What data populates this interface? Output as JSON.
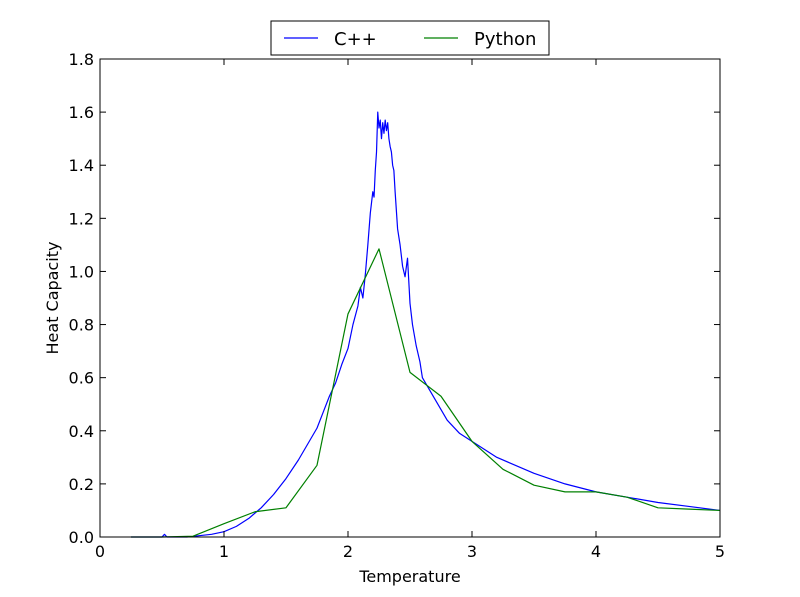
{
  "chart_data": {
    "type": "line",
    "title": "",
    "xlabel": "Temperature",
    "ylabel": "Heat Capacity",
    "xlim": [
      0,
      5
    ],
    "ylim": [
      0,
      1.8
    ],
    "xticks": [
      0,
      1,
      2,
      3,
      4,
      5
    ],
    "xtick_labels": [
      "0",
      "1",
      "2",
      "3",
      "4",
      "5"
    ],
    "yticks": [
      0.0,
      0.2,
      0.4,
      0.6,
      0.8,
      1.0,
      1.2,
      1.4,
      1.6,
      1.8
    ],
    "ytick_labels": [
      "0.0",
      "0.2",
      "0.4",
      "0.6",
      "0.8",
      "1.0",
      "1.2",
      "1.4",
      "1.6",
      "1.8"
    ],
    "grid": false,
    "legend_position": "top-center",
    "series": [
      {
        "name": "C++",
        "color": "#0000ff",
        "x": [
          0.25,
          0.5,
          0.52,
          0.54,
          0.6,
          0.7,
          0.75,
          0.8,
          0.9,
          1.0,
          1.1,
          1.2,
          1.3,
          1.4,
          1.5,
          1.6,
          1.7,
          1.75,
          1.8,
          1.85,
          1.9,
          1.95,
          2.0,
          2.04,
          2.08,
          2.1,
          2.12,
          2.14,
          2.16,
          2.18,
          2.2,
          2.21,
          2.22,
          2.23,
          2.24,
          2.25,
          2.26,
          2.27,
          2.28,
          2.29,
          2.3,
          2.31,
          2.32,
          2.33,
          2.34,
          2.35,
          2.36,
          2.37,
          2.38,
          2.4,
          2.42,
          2.44,
          2.46,
          2.48,
          2.5,
          2.52,
          2.55,
          2.58,
          2.6,
          2.65,
          2.7,
          2.75,
          2.8,
          2.9,
          3.0,
          3.1,
          3.2,
          3.3,
          3.5,
          3.75,
          4.0,
          4.25,
          4.5,
          4.75,
          5.0
        ],
        "y": [
          0.0,
          0.0,
          0.01,
          0.0,
          0.0,
          0.0,
          0.002,
          0.005,
          0.01,
          0.02,
          0.04,
          0.07,
          0.11,
          0.16,
          0.22,
          0.29,
          0.37,
          0.41,
          0.47,
          0.53,
          0.58,
          0.65,
          0.71,
          0.8,
          0.87,
          0.94,
          0.9,
          0.99,
          1.1,
          1.22,
          1.3,
          1.28,
          1.38,
          1.45,
          1.6,
          1.54,
          1.57,
          1.5,
          1.56,
          1.52,
          1.57,
          1.53,
          1.56,
          1.5,
          1.47,
          1.45,
          1.4,
          1.38,
          1.3,
          1.16,
          1.1,
          1.02,
          0.98,
          1.05,
          0.88,
          0.8,
          0.72,
          0.66,
          0.6,
          0.56,
          0.52,
          0.48,
          0.44,
          0.39,
          0.36,
          0.33,
          0.3,
          0.28,
          0.24,
          0.2,
          0.17,
          0.15,
          0.13,
          0.115,
          0.1
        ]
      },
      {
        "name": "Python",
        "color": "#008000",
        "x": [
          0.25,
          0.5,
          0.75,
          1.0,
          1.25,
          1.5,
          1.75,
          2.0,
          2.25,
          2.5,
          2.75,
          3.0,
          3.25,
          3.5,
          3.75,
          4.0,
          4.25,
          4.5,
          4.75,
          5.0
        ],
        "y": [
          0.0,
          0.0,
          0.003,
          0.05,
          0.095,
          0.11,
          0.27,
          0.84,
          1.085,
          0.62,
          0.53,
          0.36,
          0.255,
          0.195,
          0.17,
          0.17,
          0.15,
          0.11,
          0.105,
          0.1
        ]
      }
    ]
  }
}
